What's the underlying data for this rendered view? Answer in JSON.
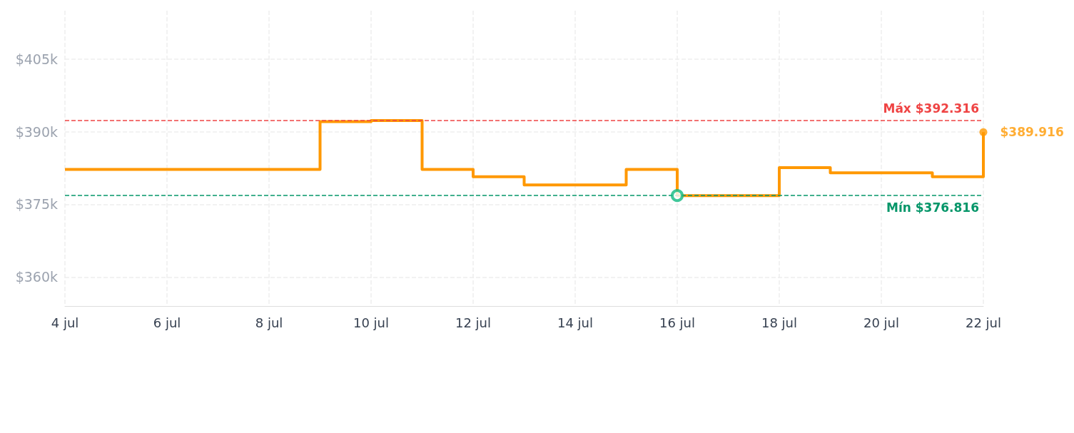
{
  "chart_data": {
    "type": "step",
    "x": [
      "--07-04",
      "--07-05",
      "--07-06",
      "--07-07",
      "--07-08",
      "--07-09",
      "--07-10",
      "--07-11",
      "--07-12",
      "--07-13",
      "--07-14",
      "--07-15",
      "--07-16",
      "--07-17",
      "--07-18",
      "--07-19",
      "--07-20",
      "--07-21",
      "--07-22"
    ],
    "series": [
      {
        "color": "#ff9800",
        "values": [
          382200,
          382200,
          382200,
          382200,
          382200,
          392100,
          392316,
          382200,
          380700,
          379000,
          379000,
          382200,
          376816,
          376816,
          382600,
          381500,
          381500,
          380700,
          389916
        ]
      },
      {
        "type": "scatter",
        "color": "#10b981",
        "marker": "circle",
        "x": [
          "--07-16"
        ],
        "values": [
          376816
        ]
      }
    ],
    "xlim": [
      "--07-04",
      "--07-22"
    ],
    "xticks": [
      {
        "value": "--07-04",
        "label": "4 jul"
      },
      {
        "value": "--07-06",
        "label": "6 jul"
      },
      {
        "value": "--07-08",
        "label": "8 jul"
      },
      {
        "value": "--07-10",
        "label": "10 jul"
      },
      {
        "value": "--07-12",
        "label": "12 jul"
      },
      {
        "value": "--07-14",
        "label": "14 jul"
      },
      {
        "value": "--07-16",
        "label": "16 jul"
      },
      {
        "value": "--07-18",
        "label": "18 jul"
      },
      {
        "value": "--07-20",
        "label": "20 jul"
      },
      {
        "value": "--07-22",
        "label": "22 jul"
      }
    ],
    "ylim": [
      354000,
      415000
    ],
    "yticks": [
      {
        "value": 360000,
        "label": "$360k"
      },
      {
        "value": 375000,
        "label": "$375k"
      },
      {
        "value": 390000,
        "label": "$390k"
      },
      {
        "value": 405000,
        "label": "$405k"
      }
    ],
    "ref_lines": [
      {
        "axis": "y",
        "value": 392316,
        "label": "Máx $392.316",
        "color": "#ef4444",
        "line_style": "dashed"
      },
      {
        "axis": "y",
        "value": 376816,
        "label": "Mín $376.816",
        "color": "#059669",
        "line_style": "dashed"
      }
    ],
    "annotations": [
      {
        "text": "$389.916",
        "x": "--07-22",
        "y": 389916
      }
    ],
    "grid": true,
    "marker": "none",
    "line_style": "solid"
  }
}
